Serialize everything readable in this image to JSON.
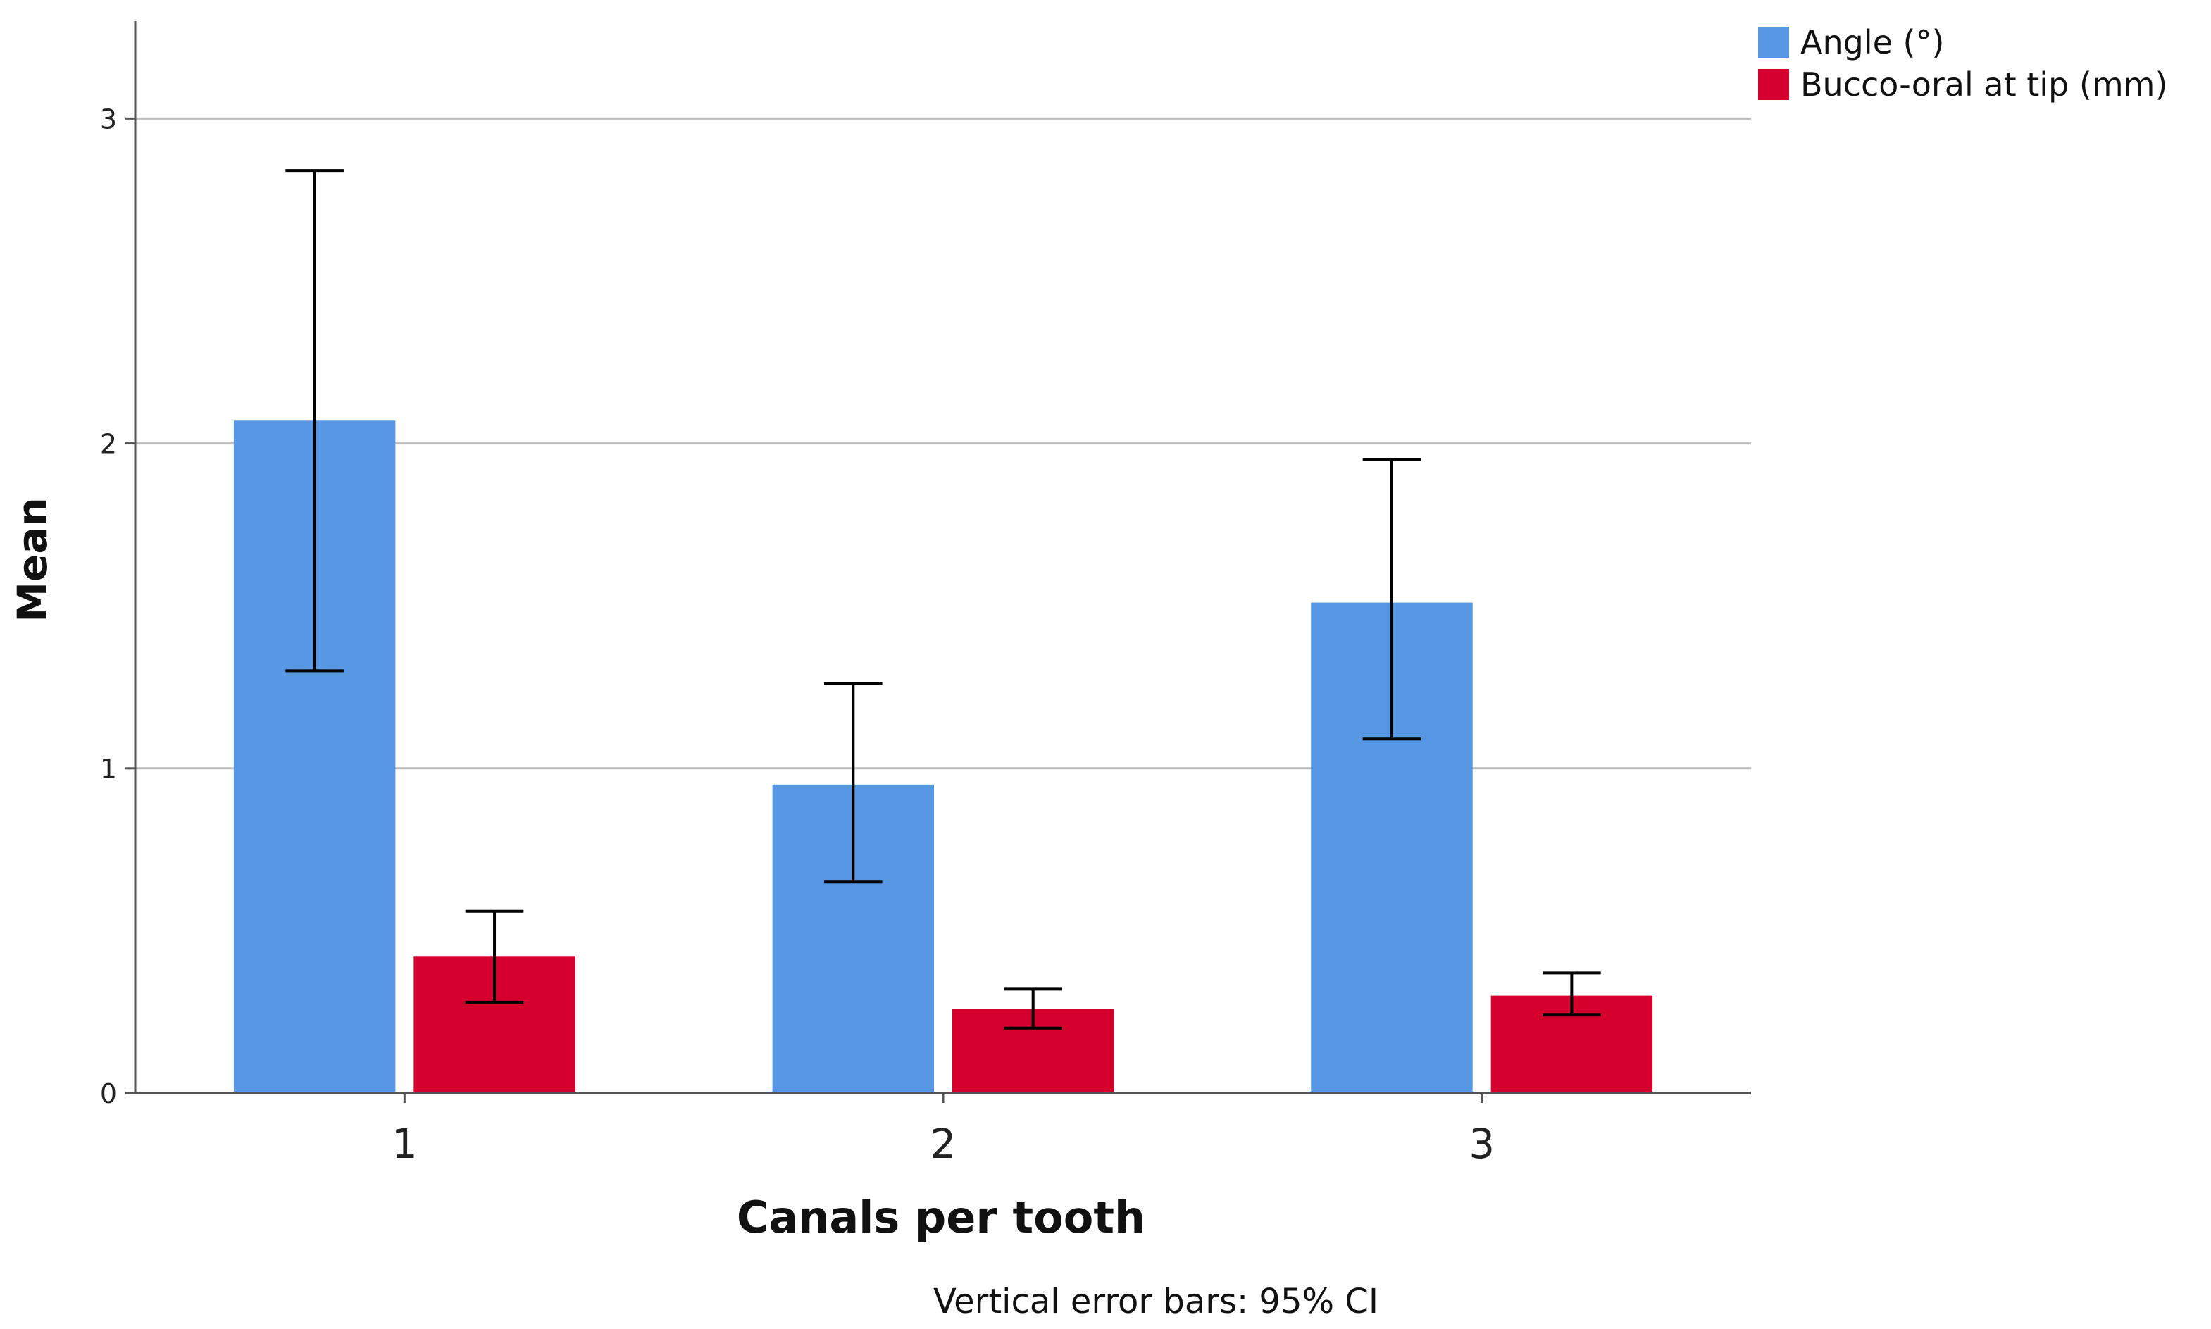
{
  "chart_data": {
    "type": "bar",
    "title": "",
    "xlabel": "Canals per tooth",
    "ylabel": "Mean",
    "ylim": [
      0,
      3.3
    ],
    "yticks": [
      {
        "value": 0,
        "label": "0"
      },
      {
        "value": 1,
        "label": "1"
      },
      {
        "value": 2,
        "label": "2"
      },
      {
        "value": 3,
        "label": "3"
      }
    ],
    "grid": true,
    "categories": [
      "1",
      "2",
      "3"
    ],
    "series": [
      {
        "name": "Angle (°)",
        "color": "#5696e3",
        "values": [
          2.07,
          0.95,
          1.51
        ],
        "ci_low": [
          1.3,
          0.65,
          1.09
        ],
        "ci_high": [
          2.84,
          1.26,
          1.95
        ]
      },
      {
        "name": "Bucco-oral at tip (mm)",
        "color": "#d6002f",
        "values": [
          0.42,
          0.26,
          0.3
        ],
        "ci_low": [
          0.28,
          0.2,
          0.24
        ],
        "ci_high": [
          0.56,
          0.32,
          0.37
        ]
      }
    ],
    "legend_position": "top-right",
    "footnote": "Vertical error bars: 95% CI"
  }
}
